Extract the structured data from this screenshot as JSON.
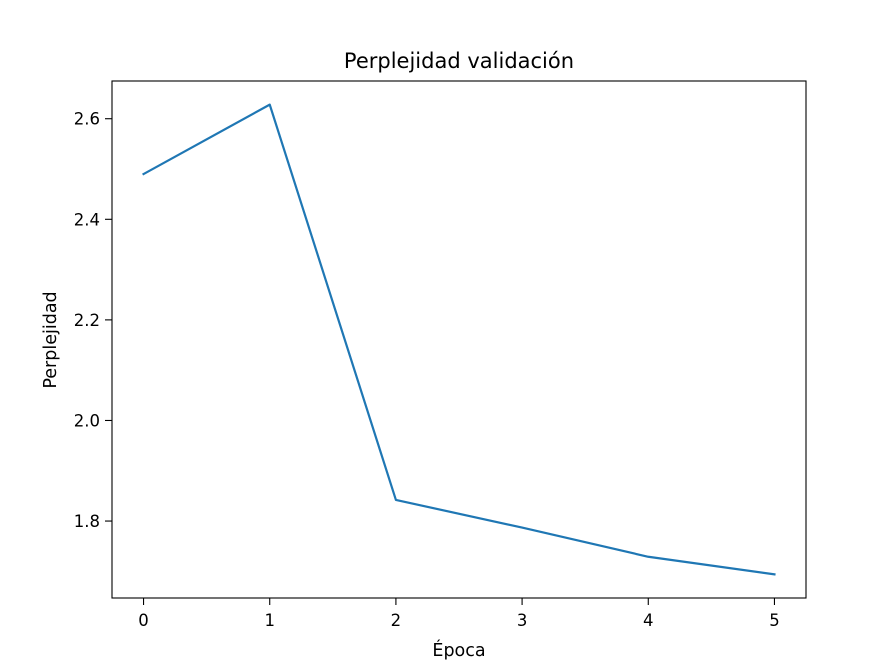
{
  "chart_data": {
    "type": "line",
    "title": "Perplejidad validación",
    "xlabel": "Época",
    "ylabel": "Perplejidad",
    "x": [
      0,
      1,
      2,
      3,
      4,
      5
    ],
    "series": [
      {
        "values": [
          2.49,
          2.628,
          1.842,
          1.787,
          1.729,
          1.694
        ],
        "color": "#1f77b4"
      }
    ],
    "xlim": [
      -0.25,
      5.25
    ],
    "ylim": [
      1.647,
      2.675
    ],
    "xticks": [
      0,
      1,
      2,
      3,
      4,
      5
    ],
    "xtick_labels": [
      "0",
      "1",
      "2",
      "3",
      "4",
      "5"
    ],
    "yticks": [
      1.8,
      2.0,
      2.2,
      2.4,
      2.6
    ],
    "ytick_labels": [
      "1.8",
      "2.0",
      "2.2",
      "2.4",
      "2.6"
    ],
    "grid": false,
    "legend": "none"
  }
}
